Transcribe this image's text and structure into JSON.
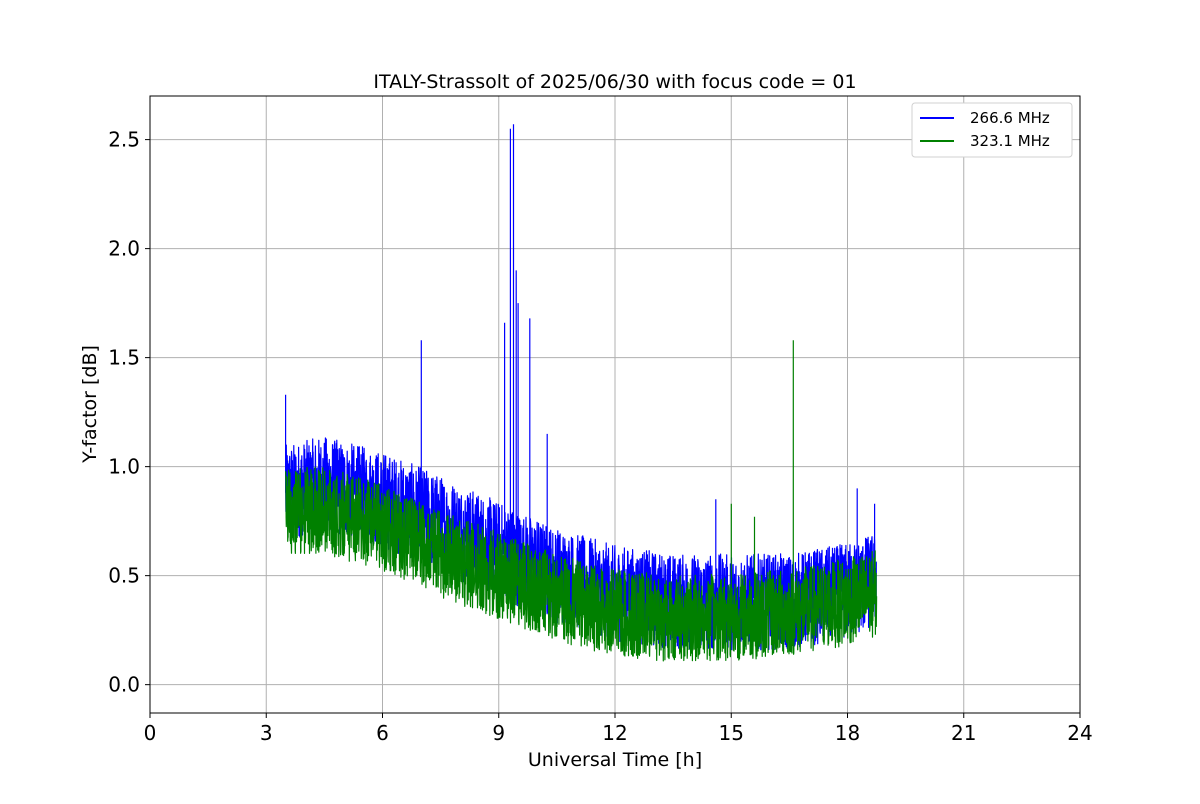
{
  "chart_data": {
    "type": "line",
    "title": "ITALY-Strassolt of 2025/06/30 with focus code = 01",
    "xlabel": "Universal Time [h]",
    "ylabel": "Y-factor [dB]",
    "xlim": [
      0,
      24
    ],
    "ylim": [
      -0.13,
      2.7
    ],
    "xticks": [
      0,
      3,
      6,
      9,
      12,
      15,
      18,
      21,
      24
    ],
    "xtick_labels": [
      "0",
      "3",
      "6",
      "9",
      "12",
      "15",
      "18",
      "21",
      "24"
    ],
    "yticks": [
      0.0,
      0.5,
      1.0,
      1.5,
      2.0,
      2.5
    ],
    "ytick_labels": [
      "0.0",
      "0.5",
      "1.0",
      "1.5",
      "2.0",
      "2.5"
    ],
    "grid": true,
    "legend_position": "top-right",
    "series": [
      {
        "name": "266.6 MHz",
        "color": "#0000ff",
        "baseline": {
          "x": [
            3.5,
            4.5,
            6.0,
            7.5,
            9.0,
            10.5,
            12.0,
            13.5,
            15.0,
            16.5,
            18.0,
            18.75
          ],
          "y": [
            0.88,
            0.92,
            0.85,
            0.74,
            0.62,
            0.5,
            0.42,
            0.38,
            0.38,
            0.38,
            0.43,
            0.48
          ]
        },
        "spread": 0.22,
        "spikes": {
          "x": [
            3.5,
            7.0,
            9.15,
            9.3,
            9.38,
            9.45,
            9.5,
            9.8,
            10.25,
            14.6,
            18.25,
            18.7
          ],
          "y": [
            1.33,
            1.58,
            1.66,
            2.55,
            2.57,
            1.9,
            1.75,
            1.68,
            1.15,
            0.85,
            0.9,
            0.83
          ]
        }
      },
      {
        "name": "323.1 MHz",
        "color": "#008000",
        "baseline": {
          "x": [
            3.5,
            4.5,
            6.0,
            7.5,
            9.0,
            10.5,
            12.0,
            13.5,
            15.0,
            16.5,
            18.0,
            18.75
          ],
          "y": [
            0.8,
            0.8,
            0.72,
            0.6,
            0.5,
            0.4,
            0.33,
            0.3,
            0.31,
            0.33,
            0.38,
            0.42
          ]
        },
        "spread": 0.2,
        "spikes": {
          "x": [
            15.0,
            15.6,
            16.6
          ],
          "y": [
            0.83,
            0.77,
            1.58
          ]
        }
      }
    ]
  }
}
